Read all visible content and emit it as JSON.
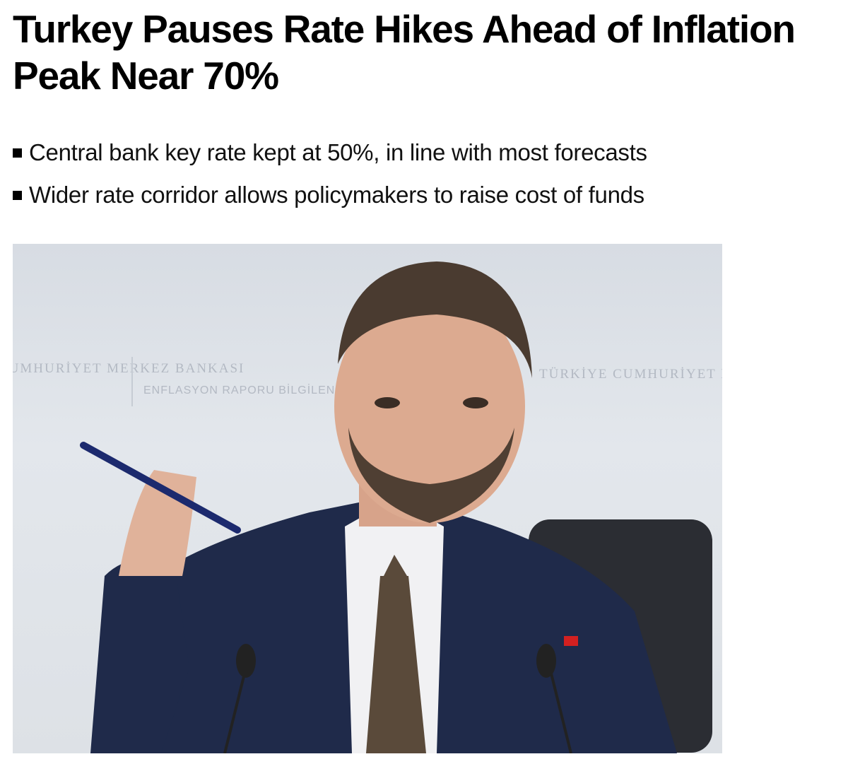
{
  "article": {
    "headline": "Turkey Pauses Rate Hikes Ahead of Inflation Peak Near 70%",
    "bullets": [
      "Central bank key rate kept at 50%, in line with most forecasts",
      "Wider rate corridor allows policymakers to raise cost of funds"
    ],
    "photo": {
      "backdrop_text": [
        "CUMHURİYET MERKEZ BANKASI",
        "ENFLASYON RAPORU BİLGİLENDİRME TOPLANTISI",
        "TÜRKİYE CUMHURİYET MERKEZ BANKASI"
      ]
    }
  }
}
